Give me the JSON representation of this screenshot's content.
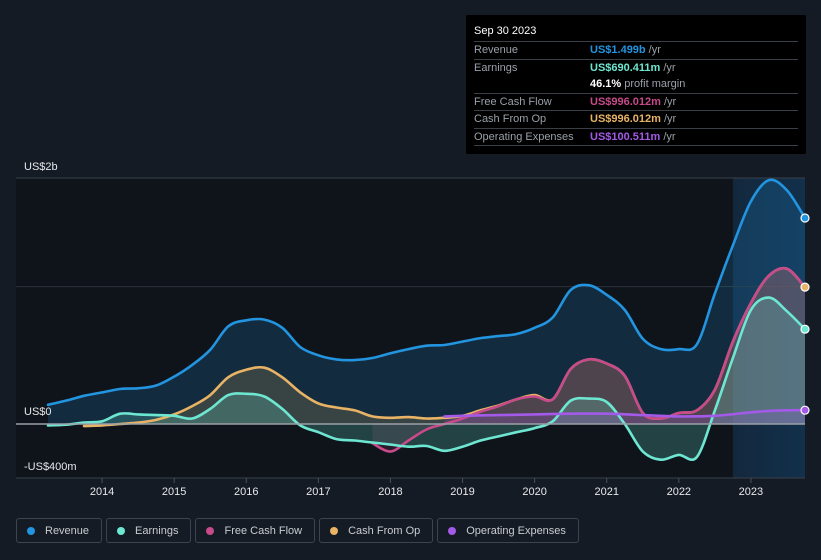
{
  "tooltip": {
    "date": "Sep 30 2023",
    "rows": [
      {
        "label": "Revenue",
        "value": "US$1.499b",
        "unit": "/yr",
        "color": "#2394df"
      },
      {
        "label": "Earnings",
        "value": "US$690.411m",
        "unit": "/yr",
        "color": "#6ee7d2"
      },
      {
        "label": "",
        "value": "46.1%",
        "unit": "profit margin",
        "color": "#ffffff"
      },
      {
        "label": "Free Cash Flow",
        "value": "US$996.012m",
        "unit": "/yr",
        "color": "#c74a8a"
      },
      {
        "label": "Cash From Op",
        "value": "US$996.012m",
        "unit": "/yr",
        "color": "#e8b365"
      },
      {
        "label": "Operating Expenses",
        "value": "US$100.511m",
        "unit": "/yr",
        "color": "#a45ae8"
      }
    ]
  },
  "legend": [
    {
      "label": "Revenue",
      "color": "#2394df"
    },
    {
      "label": "Earnings",
      "color": "#6ee7d2"
    },
    {
      "label": "Free Cash Flow",
      "color": "#c74a8a"
    },
    {
      "label": "Cash From Op",
      "color": "#e8b365"
    },
    {
      "label": "Operating Expenses",
      "color": "#a45ae8"
    }
  ],
  "chart_data": {
    "type": "area",
    "title": "",
    "xlabel": "",
    "ylabel": "",
    "unit": "US$ millions",
    "y_tick_labels": [
      {
        "value": 1800,
        "label": "US$2b"
      },
      {
        "value": 0,
        "label": "US$0"
      },
      {
        "value": -400,
        "label": "-US$400m"
      }
    ],
    "y_gridlines": [
      1800,
      1000,
      0,
      -400
    ],
    "ylim": [
      -400,
      1800
    ],
    "xlim": [
      2013.25,
      2023.75
    ],
    "x_ticks": [
      2014,
      2015,
      2016,
      2017,
      2018,
      2019,
      2020,
      2021,
      2022,
      2023
    ],
    "x_tick_labels": [
      "2014",
      "2015",
      "2016",
      "2017",
      "2018",
      "2019",
      "2020",
      "2021",
      "2022",
      "2023"
    ],
    "highlight_range": [
      2022.75,
      2023.75
    ],
    "legend_position": "bottom-left",
    "grid": true,
    "series": [
      {
        "name": "Revenue",
        "color": "#2394df",
        "x": [
          2013.25,
          2013.5,
          2013.75,
          2014.0,
          2014.25,
          2014.5,
          2014.75,
          2015.0,
          2015.25,
          2015.5,
          2015.75,
          2016.0,
          2016.25,
          2016.5,
          2016.75,
          2017.0,
          2017.25,
          2017.5,
          2017.75,
          2018.0,
          2018.25,
          2018.5,
          2018.75,
          2019.0,
          2019.25,
          2019.5,
          2019.75,
          2020.0,
          2020.25,
          2020.5,
          2020.75,
          2021.0,
          2021.25,
          2021.5,
          2021.75,
          2022.0,
          2022.25,
          2022.5,
          2022.75,
          2023.0,
          2023.25,
          2023.5,
          2023.75
        ],
        "values": [
          140,
          170,
          205,
          230,
          255,
          260,
          280,
          345,
          430,
          540,
          710,
          755,
          760,
          700,
          560,
          500,
          470,
          465,
          480,
          515,
          545,
          570,
          575,
          600,
          625,
          640,
          655,
          700,
          775,
          975,
          1010,
          940,
          830,
          620,
          545,
          545,
          580,
          950,
          1300,
          1620,
          1775,
          1700,
          1499
        ]
      },
      {
        "name": "Earnings",
        "color": "#6ee7d2",
        "x": [
          2013.25,
          2013.5,
          2013.75,
          2014.0,
          2014.25,
          2014.5,
          2014.75,
          2015.0,
          2015.25,
          2015.5,
          2015.75,
          2016.0,
          2016.25,
          2016.5,
          2016.75,
          2017.0,
          2017.25,
          2017.5,
          2017.75,
          2018.0,
          2018.25,
          2018.5,
          2018.75,
          2019.0,
          2019.25,
          2019.5,
          2019.75,
          2020.0,
          2020.25,
          2020.5,
          2020.75,
          2021.0,
          2021.25,
          2021.5,
          2021.75,
          2022.0,
          2022.25,
          2022.5,
          2022.75,
          2023.0,
          2023.25,
          2023.5,
          2023.75
        ],
        "values": [
          -10,
          -5,
          10,
          20,
          75,
          70,
          65,
          60,
          40,
          110,
          210,
          220,
          200,
          110,
          -10,
          -60,
          -110,
          -120,
          -135,
          -150,
          -165,
          -160,
          -195,
          -165,
          -120,
          -90,
          -60,
          -30,
          20,
          170,
          185,
          160,
          0,
          -200,
          -260,
          -225,
          -240,
          100,
          480,
          830,
          920,
          820,
          690
        ]
      },
      {
        "name": "Free Cash Flow",
        "color": "#c74a8a",
        "x": [
          2017.75,
          2018.0,
          2018.25,
          2018.5,
          2018.75,
          2019.0,
          2019.25,
          2019.5,
          2019.75,
          2020.0,
          2020.25,
          2020.5,
          2020.75,
          2021.0,
          2021.25,
          2021.5,
          2021.75,
          2022.0,
          2022.25,
          2022.5,
          2022.75,
          2023.0,
          2023.25,
          2023.5,
          2023.75
        ],
        "values": [
          -140,
          -200,
          -120,
          -40,
          0,
          40,
          90,
          130,
          180,
          200,
          180,
          400,
          470,
          440,
          350,
          80,
          40,
          80,
          100,
          250,
          600,
          880,
          1080,
          1130,
          996
        ]
      },
      {
        "name": "Cash From Op",
        "color": "#e8b365",
        "x": [
          2013.75,
          2014.0,
          2014.25,
          2014.5,
          2014.75,
          2015.0,
          2015.25,
          2015.5,
          2015.75,
          2016.0,
          2016.25,
          2016.5,
          2016.75,
          2017.0,
          2017.25,
          2017.5,
          2017.75,
          2018.0,
          2018.25,
          2018.5,
          2018.75,
          2019.0,
          2019.25,
          2019.5,
          2019.75,
          2020.0,
          2020.25,
          2020.5,
          2020.75,
          2021.0,
          2021.25,
          2021.5,
          2021.75,
          2022.0,
          2022.25,
          2022.5,
          2022.75,
          2023.0,
          2023.25,
          2023.5,
          2023.75
        ],
        "values": [
          -15,
          -10,
          0,
          10,
          30,
          70,
          130,
          210,
          340,
          395,
          410,
          340,
          230,
          150,
          120,
          100,
          55,
          45,
          50,
          40,
          45,
          60,
          100,
          135,
          180,
          210,
          180,
          400,
          470,
          440,
          350,
          80,
          40,
          80,
          100,
          250,
          600,
          880,
          1080,
          1130,
          996
        ]
      },
      {
        "name": "Operating Expenses",
        "color": "#a45ae8",
        "x": [
          2018.75,
          2019.0,
          2019.5,
          2020.0,
          2020.5,
          2021.0,
          2021.5,
          2022.0,
          2022.5,
          2023.0,
          2023.25,
          2023.5,
          2023.75
        ],
        "values": [
          55,
          60,
          65,
          70,
          75,
          75,
          65,
          55,
          60,
          85,
          95,
          100,
          100.5
        ]
      }
    ],
    "end_markers": [
      "Revenue",
      "Earnings",
      "Cash From Op",
      "Operating Expenses"
    ]
  }
}
